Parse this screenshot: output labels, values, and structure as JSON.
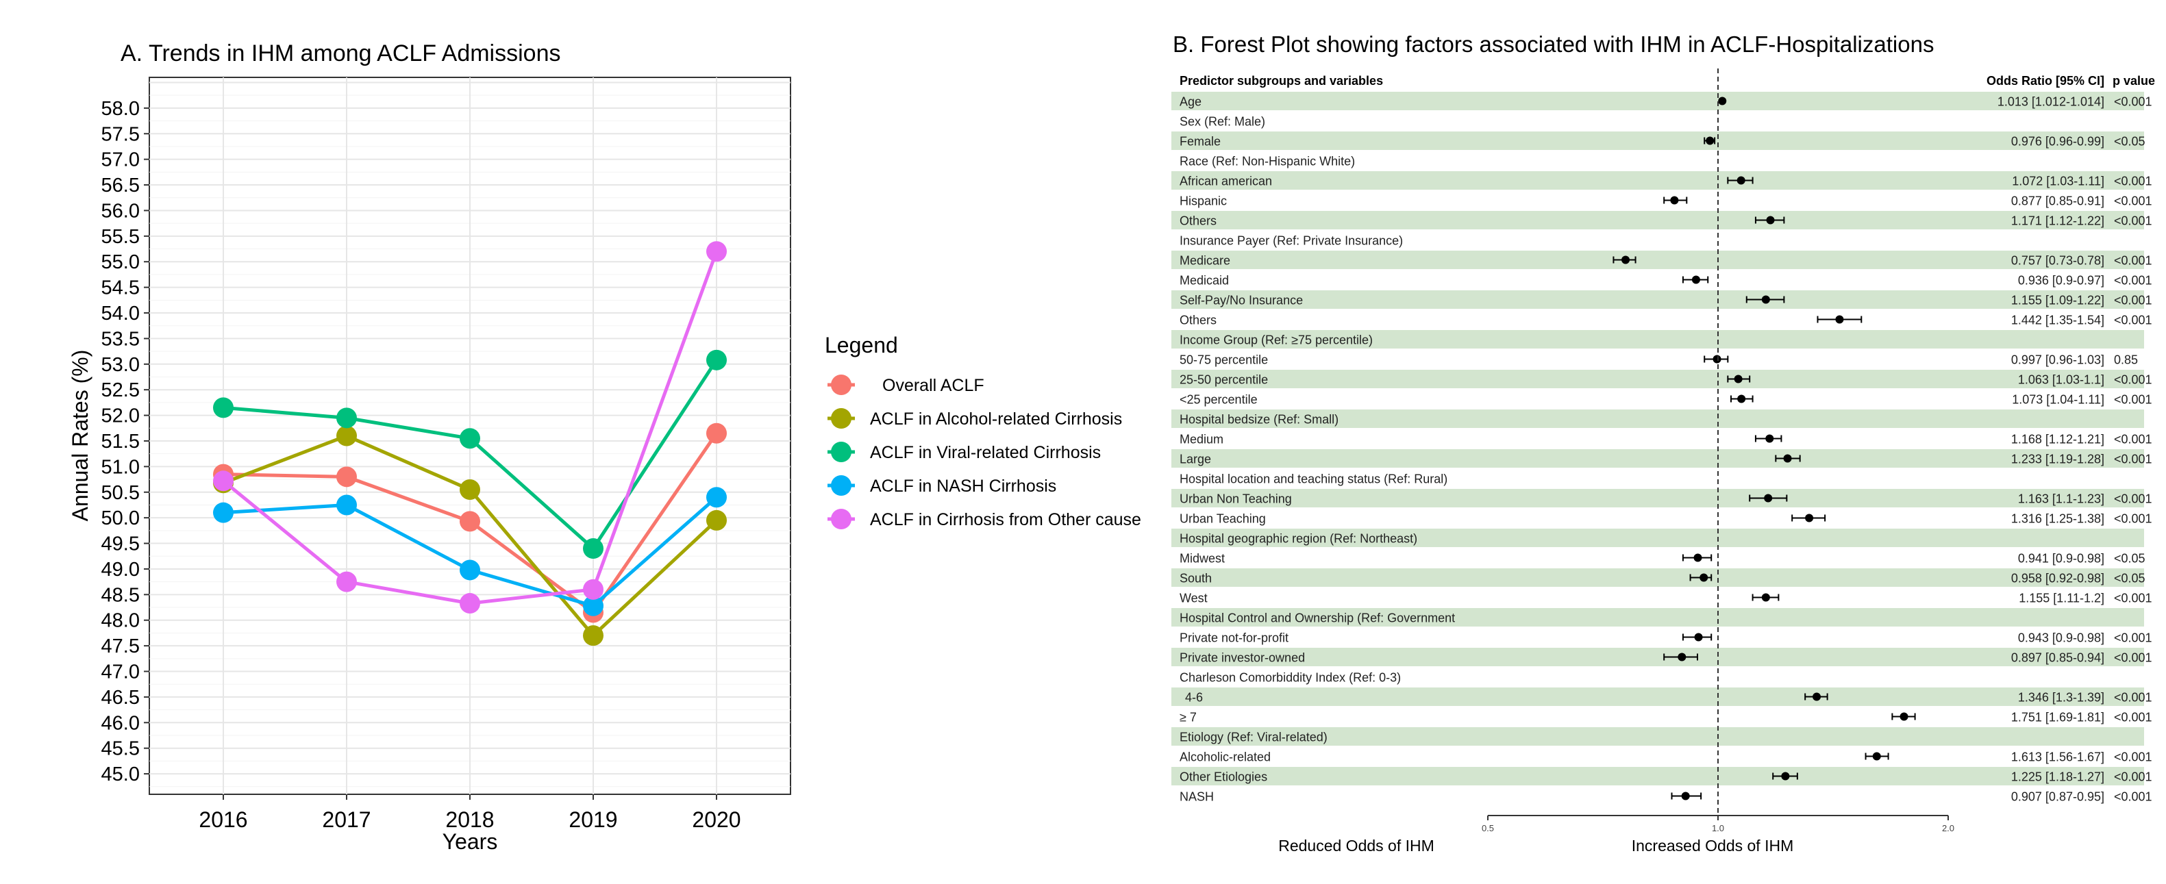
{
  "panel_a": {
    "title": "A. Trends in IHM among ACLF Admissions",
    "xlabel": "Years",
    "ylabel": "Annual Rates (%)",
    "legend_title": "Legend"
  },
  "panel_b": {
    "title": "B. Forest Plot showing factors associated with IHM in ACLF-Hospitalizations",
    "col_predictor": "Predictor subgroups and variables",
    "col_or": "Odds Ratio [95% CI]",
    "col_p": "p value",
    "label_reduced": "Reduced Odds of IHM",
    "label_increased": "Increased Odds of IHM"
  },
  "chart_data": [
    {
      "type": "line",
      "x": [
        2016,
        2017,
        2018,
        2019,
        2020
      ],
      "categories": [
        "2016",
        "2017",
        "2018",
        "2019",
        "2020"
      ],
      "ylim": [
        44.6,
        58.6
      ],
      "yticks": [
        "45.0",
        "45.5",
        "46.0",
        "46.5",
        "47.0",
        "47.5",
        "48.0",
        "48.5",
        "49.0",
        "49.5",
        "50.0",
        "50.5",
        "51.0",
        "51.5",
        "52.0",
        "52.5",
        "53.0",
        "53.5",
        "54.0",
        "54.5",
        "55.0",
        "55.5",
        "56.0",
        "56.5",
        "57.0",
        "57.5",
        "58.0"
      ],
      "grid": true,
      "legend": "right",
      "series": [
        {
          "name": "Overall ACLF",
          "color": "#F8766D",
          "values": [
            50.85,
            50.8,
            49.93,
            48.15,
            51.65
          ]
        },
        {
          "name": "ACLF in Alcohol-related Cirrhosis",
          "color": "#A3A500",
          "values": [
            50.68,
            51.6,
            50.55,
            47.7,
            49.95
          ]
        },
        {
          "name": "ACLF in Viral-related Cirrhosis",
          "color": "#00BF7D",
          "values": [
            52.15,
            51.95,
            51.55,
            49.4,
            53.08
          ]
        },
        {
          "name": "ACLF in NASH Cirrhosis",
          "color": "#00B0F6",
          "values": [
            50.1,
            50.25,
            48.98,
            48.28,
            50.4
          ]
        },
        {
          "name": "ACLF in Cirrhosis from Other cause",
          "color": "#E76BF3",
          "values": [
            50.72,
            48.75,
            48.33,
            48.6,
            55.2
          ]
        }
      ]
    },
    {
      "type": "forest",
      "xlim": [
        0.5,
        2.0
      ],
      "xticks": [
        0.5,
        1.0,
        2.0
      ],
      "xtick_labels": [
        "0.5",
        "1.0",
        "2.0"
      ],
      "reference": 1.0,
      "band_color": "#D3E5CF",
      "rows": [
        {
          "label": "Age",
          "or": 1.013,
          "lo": 1.012,
          "hi": 1.014,
          "text": "1.013 [1.012-1.014]",
          "p": "<0.001",
          "band": true
        },
        {
          "label": "Sex (Ref: Male)",
          "header": true,
          "band": false
        },
        {
          "label": "Female",
          "or": 0.976,
          "lo": 0.96,
          "hi": 0.99,
          "text": "0.976 [0.96-0.99]",
          "p": "<0.05",
          "band": true
        },
        {
          "label": "Race (Ref: Non-Hispanic White)",
          "header": true,
          "band": false
        },
        {
          "label": "African american",
          "or": 1.072,
          "lo": 1.03,
          "hi": 1.11,
          "text": "1.072 [1.03-1.11]",
          "p": "<0.001",
          "band": true
        },
        {
          "label": "Hispanic",
          "or": 0.877,
          "lo": 0.85,
          "hi": 0.91,
          "text": "0.877 [0.85-0.91]",
          "p": "<0.001",
          "band": false
        },
        {
          "label": "Others",
          "or": 1.171,
          "lo": 1.12,
          "hi": 1.22,
          "text": "1.171 [1.12-1.22]",
          "p": "<0.001",
          "band": true
        },
        {
          "label": "Insurance Payer (Ref: Private Insurance)",
          "header": true,
          "band": false
        },
        {
          "label": "Medicare",
          "or": 0.757,
          "lo": 0.73,
          "hi": 0.78,
          "text": "0.757 [0.73-0.78]",
          "p": "<0.001",
          "band": true
        },
        {
          "label": "Medicaid",
          "or": 0.936,
          "lo": 0.9,
          "hi": 0.97,
          "text": "0.936 [0.9-0.97]",
          "p": "<0.001",
          "band": false
        },
        {
          "label": "Self-Pay/No Insurance",
          "or": 1.155,
          "lo": 1.09,
          "hi": 1.22,
          "text": "1.155 [1.09-1.22]",
          "p": "<0.001",
          "band": true
        },
        {
          "label": "Others",
          "or": 1.442,
          "lo": 1.35,
          "hi": 1.54,
          "text": "1.442 [1.35-1.54]",
          "p": "<0.001",
          "band": false
        },
        {
          "label": "Income Group (Ref: ≥75 percentile)",
          "header": true,
          "band": true
        },
        {
          "label": "50-75 percentile",
          "or": 0.997,
          "lo": 0.96,
          "hi": 1.03,
          "text": "0.997 [0.96-1.03]",
          "p": "0.85",
          "band": false
        },
        {
          "label": "25-50 percentile",
          "or": 1.063,
          "lo": 1.03,
          "hi": 1.1,
          "text": "1.063 [1.03-1.1]",
          "p": "<0.001",
          "band": true
        },
        {
          "label": "<25 percentile",
          "or": 1.073,
          "lo": 1.04,
          "hi": 1.11,
          "text": "1.073 [1.04-1.11]",
          "p": "<0.001",
          "band": false
        },
        {
          "label": "Hospital bedsize (Ref: Small)",
          "header": true,
          "band": true
        },
        {
          "label": "Medium",
          "or": 1.168,
          "lo": 1.12,
          "hi": 1.21,
          "text": "1.168 [1.12-1.21]",
          "p": "<0.001",
          "band": false
        },
        {
          "label": "Large",
          "or": 1.233,
          "lo": 1.19,
          "hi": 1.28,
          "text": "1.233 [1.19-1.28]",
          "p": "<0.001",
          "band": true
        },
        {
          "label": "Hospital location and teaching status (Ref: Rural)",
          "header": true,
          "band": false
        },
        {
          "label": "Urban Non Teaching",
          "or": 1.163,
          "lo": 1.1,
          "hi": 1.23,
          "text": "1.163 [1.1-1.23]",
          "p": "<0.001",
          "band": true
        },
        {
          "label": "Urban Teaching",
          "or": 1.316,
          "lo": 1.25,
          "hi": 1.38,
          "text": "1.316 [1.25-1.38]",
          "p": "<0.001",
          "band": false
        },
        {
          "label": "Hospital geographic region (Ref: Northeast)",
          "header": true,
          "band": true
        },
        {
          "label": "Midwest",
          "or": 0.941,
          "lo": 0.9,
          "hi": 0.98,
          "text": "0.941 [0.9-0.98]",
          "p": "<0.05",
          "band": false
        },
        {
          "label": "South",
          "or": 0.958,
          "lo": 0.92,
          "hi": 0.98,
          "text": "0.958 [0.92-0.98]",
          "p": "<0.05",
          "band": true
        },
        {
          "label": "West",
          "or": 1.155,
          "lo": 1.11,
          "hi": 1.2,
          "text": "1.155 [1.11-1.2]",
          "p": "<0.001",
          "band": false
        },
        {
          "label": "Hospital Control and Ownership (Ref: Government",
          "header": true,
          "band": true
        },
        {
          "label": "Private not-for-profit",
          "or": 0.943,
          "lo": 0.9,
          "hi": 0.98,
          "text": "0.943 [0.9-0.98]",
          "p": "<0.001",
          "band": false
        },
        {
          "label": "Private investor-owned",
          "or": 0.897,
          "lo": 0.85,
          "hi": 0.94,
          "text": "0.897 [0.85-0.94]",
          "p": "<0.001",
          "band": true
        },
        {
          "label": "Charleson Comorbiddity Index (Ref: 0-3)",
          "header": true,
          "band": false
        },
        {
          "label": "4-6",
          "or": 1.346,
          "lo": 1.3,
          "hi": 1.39,
          "text": "1.346 [1.3-1.39]",
          "p": "<0.001",
          "band": true,
          "indent": true
        },
        {
          "label": "≥ 7",
          "or": 1.751,
          "lo": 1.69,
          "hi": 1.81,
          "text": "1.751 [1.69-1.81]",
          "p": "<0.001",
          "band": false
        },
        {
          "label": "Etiology (Ref: Viral-related)",
          "header": true,
          "band": true
        },
        {
          "label": "Alcoholic-related",
          "or": 1.613,
          "lo": 1.56,
          "hi": 1.67,
          "text": "1.613 [1.56-1.67]",
          "p": "<0.001",
          "band": false
        },
        {
          "label": "Other Etiologies",
          "or": 1.225,
          "lo": 1.18,
          "hi": 1.27,
          "text": "1.225 [1.18-1.27]",
          "p": "<0.001",
          "band": true
        },
        {
          "label": "NASH",
          "or": 0.907,
          "lo": 0.87,
          "hi": 0.95,
          "text": "0.907 [0.87-0.95]",
          "p": "<0.001",
          "band": false
        }
      ]
    }
  ]
}
